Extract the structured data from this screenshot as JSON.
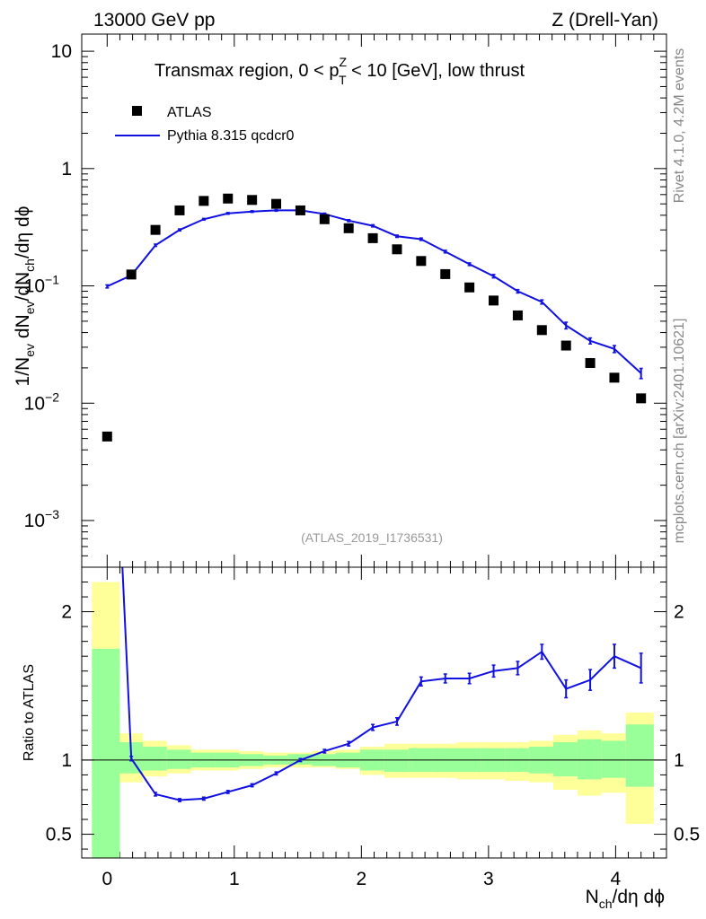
{
  "header": {
    "left": "13000 GeV pp",
    "right": "Z (Drell-Yan)"
  },
  "side_labels": {
    "version": "Rivet 4.1.0,  4.2M events",
    "source": "mcplots.cern.ch [arXiv:2401.10621]"
  },
  "reference": "(ATLAS_2019_I1736531)",
  "colors": {
    "mc": "#1010e0",
    "data": "#000000",
    "band_yellow": "#ffff99",
    "band_green": "#99ff99"
  },
  "chart_data": [
    {
      "type": "scatter",
      "title_parts": {
        "before": "Transmax region, 0 < p",
        "sup": "Z",
        "sub": "T",
        "after": " < 10 [GeV], low thrust"
      },
      "ylabel_parts": [
        "1/N",
        "ev",
        " dN",
        "ev",
        "/dN",
        "ch",
        "/dη dϕ"
      ],
      "xlabel_parts": [
        "N",
        "ch",
        "/dη dϕ"
      ],
      "yscale": "log",
      "xlim": [
        -0.2,
        4.4
      ],
      "ylim": [
        0.0004,
        14
      ],
      "y_ticks": [
        {
          "value": 10,
          "label": "10"
        },
        {
          "value": 1,
          "label": "1"
        },
        {
          "value": 0.1,
          "base": "10",
          "exp": "−1"
        },
        {
          "value": 0.01,
          "base": "10",
          "exp": "−2"
        },
        {
          "value": 0.001,
          "base": "10",
          "exp": "−3"
        }
      ],
      "legend": [
        {
          "name": "ATLAS",
          "marker": "square"
        },
        {
          "name": "Pythia 8.315 qcdcr0",
          "marker": "line"
        }
      ],
      "x": [
        0.0,
        0.19,
        0.38,
        0.57,
        0.76,
        0.95,
        1.14,
        1.33,
        1.52,
        1.71,
        1.9,
        2.09,
        2.28,
        2.47,
        2.66,
        2.85,
        3.04,
        3.23,
        3.42,
        3.61,
        3.8,
        3.99,
        4.2
      ],
      "series": [
        {
          "name": "ATLAS",
          "values": [
            0.0052,
            0.125,
            0.3,
            0.44,
            0.53,
            0.555,
            0.54,
            0.5,
            0.44,
            0.37,
            0.31,
            0.255,
            0.205,
            0.163,
            0.126,
            0.097,
            0.075,
            0.056,
            0.042,
            0.031,
            0.022,
            0.0165,
            0.011
          ]
        },
        {
          "name": "Pythia 8.315 qcdcr0",
          "values": [
            0.099,
            0.123,
            0.222,
            0.3,
            0.37,
            0.415,
            0.43,
            0.44,
            0.44,
            0.41,
            0.36,
            0.325,
            0.265,
            0.25,
            0.196,
            0.153,
            0.121,
            0.09,
            0.073,
            0.046,
            0.034,
            0.029,
            0.018
          ],
          "errors": [
            0.003,
            0.004,
            0.005,
            0.006,
            0.006,
            0.007,
            0.007,
            0.007,
            0.007,
            0.007,
            0.007,
            0.007,
            0.006,
            0.006,
            0.005,
            0.004,
            0.004,
            0.003,
            0.003,
            0.003,
            0.002,
            0.002,
            0.0018
          ]
        }
      ]
    },
    {
      "type": "line",
      "ylabel": "Ratio to ATLAS",
      "xlim": [
        -0.2,
        4.4
      ],
      "ylim": [
        0.34,
        2.3
      ],
      "x_ticks": [
        0,
        1,
        2,
        3,
        4
      ],
      "y_ticks": [
        0.5,
        1,
        2
      ],
      "bins": [
        [
          -0.12,
          0.1,
          0.34,
          2.2,
          0.34,
          1.75
        ],
        [
          0.1,
          0.28,
          0.85,
          1.18,
          0.91,
          1.12
        ],
        [
          0.28,
          0.47,
          0.89,
          1.13,
          0.93,
          1.09
        ],
        [
          0.47,
          0.66,
          0.91,
          1.1,
          0.94,
          1.07
        ],
        [
          0.66,
          0.85,
          0.93,
          1.07,
          0.95,
          1.05
        ],
        [
          0.85,
          1.04,
          0.93,
          1.07,
          0.95,
          1.05
        ],
        [
          1.04,
          1.23,
          0.94,
          1.06,
          0.96,
          1.04
        ],
        [
          1.23,
          1.42,
          0.95,
          1.05,
          0.97,
          1.03
        ],
        [
          1.42,
          1.61,
          0.95,
          1.05,
          0.97,
          1.04
        ],
        [
          1.61,
          1.8,
          0.95,
          1.06,
          0.96,
          1.04
        ],
        [
          1.8,
          1.99,
          0.94,
          1.07,
          0.95,
          1.05
        ],
        [
          1.99,
          2.18,
          0.9,
          1.09,
          0.93,
          1.07
        ],
        [
          2.18,
          2.37,
          0.88,
          1.11,
          0.92,
          1.07
        ],
        [
          2.37,
          2.56,
          0.88,
          1.11,
          0.92,
          1.08
        ],
        [
          2.56,
          2.75,
          0.88,
          1.11,
          0.92,
          1.08
        ],
        [
          2.75,
          2.94,
          0.87,
          1.12,
          0.92,
          1.08
        ],
        [
          2.94,
          3.13,
          0.87,
          1.12,
          0.92,
          1.08
        ],
        [
          3.13,
          3.32,
          0.86,
          1.12,
          0.92,
          1.08
        ],
        [
          3.32,
          3.51,
          0.85,
          1.13,
          0.91,
          1.09
        ],
        [
          3.51,
          3.7,
          0.8,
          1.17,
          0.89,
          1.12
        ],
        [
          3.7,
          3.89,
          0.76,
          1.2,
          0.87,
          1.14
        ],
        [
          3.89,
          4.08,
          0.78,
          1.18,
          0.88,
          1.13
        ],
        [
          4.08,
          4.3,
          0.57,
          1.32,
          0.82,
          1.24
        ]
      ],
      "bins_columns": [
        "x_low",
        "x_high",
        "yellow_low",
        "yellow_high",
        "green_low",
        "green_high"
      ],
      "series": [
        {
          "name": "Pythia 8.315 qcdcr0 / ATLAS",
          "x": [
            0.12,
            0.19,
            0.38,
            0.57,
            0.76,
            0.95,
            1.14,
            1.33,
            1.52,
            1.71,
            1.9,
            2.09,
            2.28,
            2.47,
            2.66,
            2.85,
            3.04,
            3.23,
            3.42,
            3.61,
            3.8,
            3.99,
            4.2
          ],
          "values": [
            2.3,
            1.01,
            0.77,
            0.73,
            0.74,
            0.785,
            0.83,
            0.91,
            1.0,
            1.06,
            1.11,
            1.22,
            1.26,
            1.53,
            1.55,
            1.55,
            1.6,
            1.62,
            1.73,
            1.48,
            1.54,
            1.7,
            1.62
          ],
          "errors": [
            0,
            0.015,
            0.012,
            0.01,
            0.01,
            0.01,
            0.01,
            0.01,
            0.01,
            0.012,
            0.015,
            0.02,
            0.025,
            0.03,
            0.03,
            0.035,
            0.04,
            0.045,
            0.05,
            0.06,
            0.07,
            0.08,
            0.1
          ]
        }
      ]
    }
  ]
}
